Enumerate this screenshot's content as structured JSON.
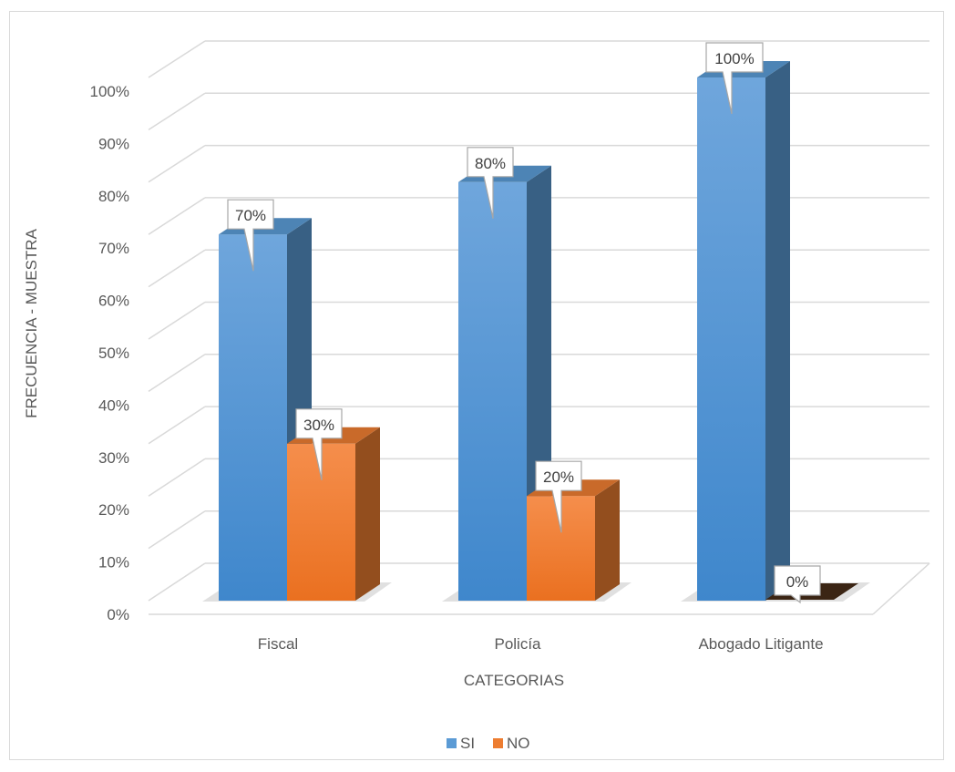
{
  "chart_data": {
    "type": "bar",
    "title": "",
    "xlabel": "CATEGORIAS",
    "ylabel": "FRECUENCIA - MUESTRA",
    "categories": [
      "Fiscal",
      "Policía",
      "Abogado Litigante"
    ],
    "series": [
      {
        "name": "SI",
        "values": [
          70,
          80,
          100
        ],
        "color": "#5b9bd5",
        "labels": [
          "70%",
          "80%",
          "100%"
        ]
      },
      {
        "name": "NO",
        "values": [
          30,
          20,
          0
        ],
        "color": "#ed7d31",
        "labels": [
          "30%",
          "20%",
          "0%"
        ]
      }
    ],
    "ylim": [
      0,
      100
    ],
    "yticks": [
      0,
      10,
      20,
      30,
      40,
      50,
      60,
      70,
      80,
      90,
      100
    ],
    "ytick_labels": [
      "0%",
      "10%",
      "20%",
      "30%",
      "40%",
      "50%",
      "60%",
      "70%",
      "80%",
      "90%",
      "100%"
    ],
    "grid": true,
    "three_d": true,
    "legend_position": "bottom"
  }
}
